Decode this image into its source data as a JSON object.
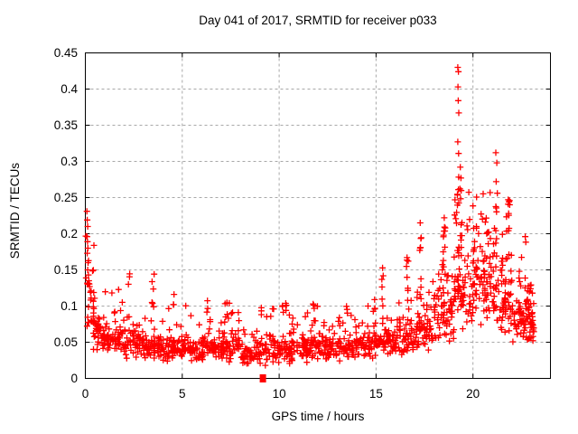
{
  "chart_data": {
    "type": "scatter",
    "title": "Day 041 of 2017, SRMTID for receiver p033",
    "xlabel": "GPS time / hours",
    "ylabel": "SRMTID / TECUs",
    "xlim": [
      0,
      24
    ],
    "ylim": [
      0,
      0.45
    ],
    "xticks": [
      0,
      5,
      10,
      15,
      20
    ],
    "xtick_labels": [
      "0",
      "5",
      "10",
      "15",
      "20"
    ],
    "yticks": [
      0,
      0.05,
      0.1,
      0.15,
      0.2,
      0.25,
      0.3,
      0.35,
      0.4,
      0.45
    ],
    "ytick_labels": [
      "0",
      "0.05",
      "0.1",
      "0.15",
      "0.2",
      "0.25",
      "0.3",
      "0.35",
      "0.4",
      "0.45"
    ],
    "grid": true,
    "grid_style": "dashed",
    "grid_color": "#a8a8a8",
    "legend": "none",
    "series_name": "SRMTID",
    "marker": {
      "shape": "plus",
      "color": "#ff0000",
      "size": 7
    },
    "seed": 7,
    "bins_format": [
      "x0",
      "x1",
      "n",
      "y_base",
      "y_spread",
      "y_tail_max",
      "tail_frac"
    ],
    "distribution_bins": [
      [
        0.02,
        0.45,
        26,
        0.04,
        0.09,
        0.2,
        0.25
      ],
      [
        0.3,
        1.0,
        42,
        0.035,
        0.055,
        0.13,
        0.13
      ],
      [
        1.0,
        2.0,
        58,
        0.03,
        0.05,
        0.125,
        0.13
      ],
      [
        2.0,
        3.0,
        58,
        0.026,
        0.045,
        0.13,
        0.12
      ],
      [
        3.0,
        4.0,
        58,
        0.023,
        0.04,
        0.1,
        0.12
      ],
      [
        4.0,
        5.0,
        56,
        0.022,
        0.038,
        0.105,
        0.12
      ],
      [
        5.0,
        6.0,
        52,
        0.022,
        0.038,
        0.105,
        0.12
      ],
      [
        6.0,
        7.0,
        58,
        0.022,
        0.04,
        0.11,
        0.12
      ],
      [
        7.0,
        8.0,
        60,
        0.022,
        0.044,
        0.105,
        0.12
      ],
      [
        8.0,
        9.0,
        54,
        0.017,
        0.038,
        0.09,
        0.12
      ],
      [
        9.0,
        10.0,
        54,
        0.017,
        0.04,
        0.1,
        0.12
      ],
      [
        10.0,
        11.0,
        60,
        0.02,
        0.042,
        0.115,
        0.12
      ],
      [
        11.0,
        12.0,
        60,
        0.022,
        0.042,
        0.105,
        0.12
      ],
      [
        12.0,
        13.0,
        58,
        0.022,
        0.04,
        0.095,
        0.12
      ],
      [
        13.0,
        14.0,
        55,
        0.022,
        0.04,
        0.1,
        0.12
      ],
      [
        14.0,
        15.0,
        60,
        0.025,
        0.045,
        0.105,
        0.12
      ],
      [
        15.0,
        16.0,
        60,
        0.028,
        0.048,
        0.115,
        0.13
      ],
      [
        16.0,
        17.0,
        60,
        0.03,
        0.05,
        0.125,
        0.14
      ],
      [
        17.0,
        18.0,
        62,
        0.035,
        0.06,
        0.15,
        0.15
      ],
      [
        18.0,
        19.0,
        66,
        0.045,
        0.09,
        0.21,
        0.16
      ],
      [
        19.0,
        20.0,
        72,
        0.06,
        0.12,
        0.27,
        0.18
      ],
      [
        20.0,
        21.0,
        76,
        0.07,
        0.13,
        0.26,
        0.18
      ],
      [
        21.0,
        22.0,
        70,
        0.055,
        0.11,
        0.25,
        0.17
      ],
      [
        22.0,
        23.0,
        62,
        0.04,
        0.08,
        0.18,
        0.15
      ],
      [
        23.0,
        23.15,
        20,
        0.04,
        0.06,
        0.13,
        0.12
      ]
    ],
    "spikes_format": [
      "x_center",
      "x_width",
      "n",
      "y_min",
      "y_max"
    ],
    "spike_columns": [
      [
        2.25,
        0.1,
        3,
        0.1,
        0.148
      ],
      [
        3.5,
        0.12,
        6,
        0.09,
        0.158
      ],
      [
        4.55,
        0.08,
        2,
        0.1,
        0.122
      ],
      [
        6.3,
        0.1,
        3,
        0.09,
        0.112
      ],
      [
        7.3,
        0.1,
        3,
        0.088,
        0.107
      ],
      [
        10.35,
        0.1,
        4,
        0.09,
        0.118
      ],
      [
        11.8,
        0.1,
        3,
        0.085,
        0.105
      ],
      [
        13.5,
        0.1,
        3,
        0.085,
        0.102
      ],
      [
        14.9,
        0.1,
        3,
        0.09,
        0.11
      ],
      [
        15.35,
        0.1,
        6,
        0.1,
        0.196
      ],
      [
        16.6,
        0.12,
        8,
        0.1,
        0.168
      ],
      [
        17.3,
        0.1,
        8,
        0.1,
        0.205
      ],
      [
        18.5,
        0.12,
        10,
        0.1,
        0.21
      ],
      [
        19.25,
        0.1,
        12,
        0.1,
        0.3
      ],
      [
        19.4,
        0.08,
        6,
        0.12,
        0.26
      ],
      [
        20.1,
        0.12,
        6,
        0.13,
        0.24
      ],
      [
        21.2,
        0.1,
        8,
        0.12,
        0.26
      ],
      [
        21.5,
        0.08,
        5,
        0.12,
        0.23
      ],
      [
        21.85,
        0.1,
        5,
        0.2,
        0.25
      ],
      [
        22.4,
        0.1,
        4,
        0.09,
        0.15
      ],
      [
        22.7,
        0.08,
        3,
        0.12,
        0.196
      ],
      [
        22.9,
        0.18,
        12,
        0.05,
        0.13
      ]
    ],
    "highlight_points": [
      [
        0.08,
        0.231
      ],
      [
        0.1,
        0.219
      ],
      [
        0.12,
        0.21
      ],
      [
        0.09,
        0.196
      ],
      [
        0.11,
        0.189
      ],
      [
        0.13,
        0.18
      ],
      [
        0.1,
        0.173
      ],
      [
        0.14,
        0.16
      ],
      [
        0.12,
        0.15
      ],
      [
        0.16,
        0.143
      ],
      [
        0.18,
        0.135
      ],
      [
        0.22,
        0.127
      ],
      [
        0.26,
        0.119
      ],
      [
        0.3,
        0.111
      ],
      [
        19.22,
        0.43
      ],
      [
        19.25,
        0.424
      ],
      [
        19.23,
        0.403
      ],
      [
        19.24,
        0.384
      ],
      [
        19.27,
        0.367
      ],
      [
        19.22,
        0.327
      ],
      [
        19.26,
        0.311
      ],
      [
        19.35,
        0.292
      ],
      [
        19.38,
        0.277
      ],
      [
        19.33,
        0.262
      ],
      [
        21.18,
        0.312
      ],
      [
        21.23,
        0.298
      ],
      [
        21.2,
        0.272
      ],
      [
        21.26,
        0.256
      ],
      [
        18.52,
        0.222
      ],
      [
        18.57,
        0.208
      ],
      [
        17.28,
        0.215
      ],
      [
        21.82,
        0.247
      ],
      [
        21.86,
        0.244
      ],
      [
        21.9,
        0.24
      ],
      [
        21.84,
        0.228
      ],
      [
        22.7,
        0.196
      ]
    ],
    "special_points": [
      {
        "x": 9.16,
        "y": 0.0,
        "marker": "filled-square"
      }
    ]
  }
}
